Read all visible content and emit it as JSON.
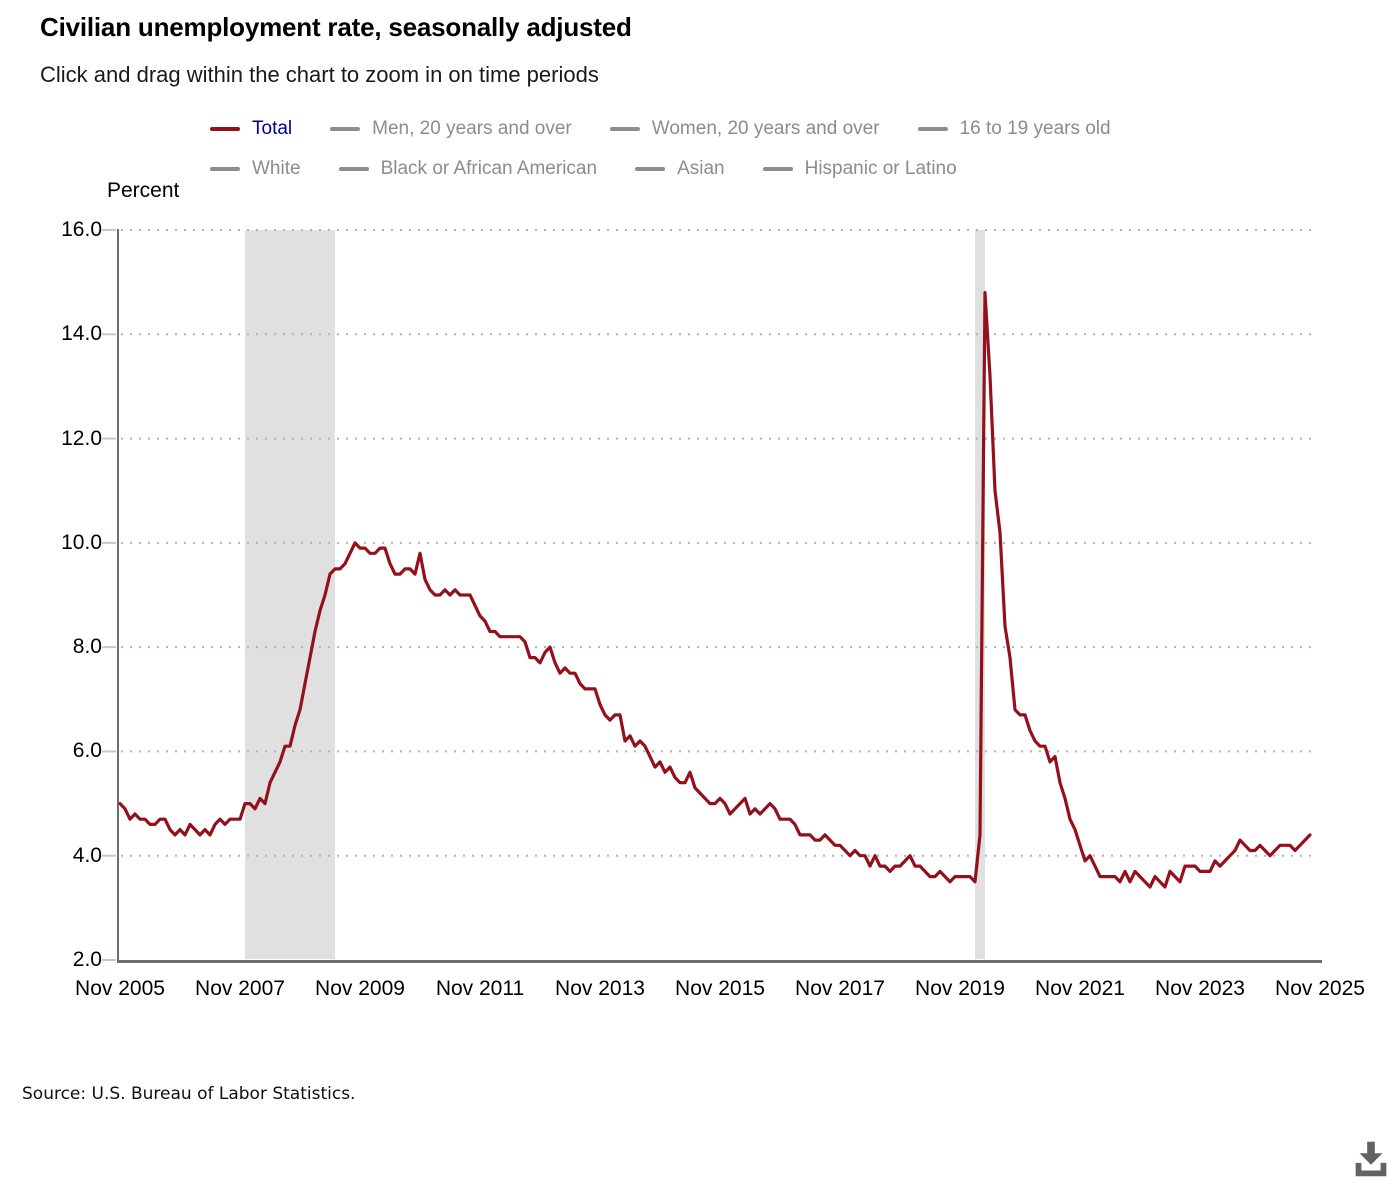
{
  "page": {
    "title": "Civilian unemployment rate, seasonally adjusted",
    "subtitle": "Click and drag within the chart to zoom in on time periods",
    "y_axis_title": "Percent",
    "source": "Source: U.S. Bureau of Labor Statistics."
  },
  "colors": {
    "active_series": "#94101a",
    "legend_active_text": "#00008b",
    "legend_inactive": "#8c8c8c",
    "recession_band": "#e0e0e0",
    "gridline": "#b3b3b3",
    "axis": "#6d6d6d",
    "y_tick": "#bcc7e1",
    "download_icon": "#636363"
  },
  "legend": {
    "items": [
      {
        "label": "Total",
        "active": true
      },
      {
        "label": "Men, 20 years and over",
        "active": false
      },
      {
        "label": "Women, 20 years and over",
        "active": false
      },
      {
        "label": "16 to 19 years old",
        "active": false
      },
      {
        "label": "White",
        "active": false
      },
      {
        "label": "Black or African American",
        "active": false
      },
      {
        "label": "Asian",
        "active": false
      },
      {
        "label": "Hispanic or Latino",
        "active": false
      }
    ]
  },
  "chart_data": {
    "type": "line",
    "title": "Civilian unemployment rate, seasonally adjusted",
    "xlabel": "",
    "ylabel": "Percent",
    "ylim": [
      2.0,
      16.0
    ],
    "grid": "dotted-horizontal",
    "legend_position": "top",
    "frequency": "monthly",
    "x_start": "Nov 2005",
    "x_end": "Nov 2025",
    "y_tick_values": [
      16,
      14,
      12,
      10,
      8,
      6,
      4,
      2
    ],
    "y_tick_labels": [
      "16.0",
      "14.0",
      "12.0",
      "10.0",
      "8.0",
      "6.0",
      "4.0",
      "2.0"
    ],
    "x_tick_labels": [
      "Nov 2005",
      "Nov 2007",
      "Nov 2009",
      "Nov 2011",
      "Nov 2013",
      "Nov 2015",
      "Nov 2017",
      "Nov 2019",
      "Nov 2021",
      "Nov 2023",
      "Nov 2025"
    ],
    "x_tick_month_indexes": [
      0,
      24,
      48,
      72,
      96,
      120,
      144,
      168,
      192,
      216,
      240
    ],
    "recession_bands": [
      {
        "start": "Dec 2007",
        "end": "Jun 2009",
        "start_month_index": 25,
        "end_month_index": 43
      },
      {
        "start": "Feb 2020",
        "end": "Apr 2020",
        "start_month_index": 171,
        "end_month_index": 173
      }
    ],
    "series": [
      {
        "name": "Total",
        "start": "Nov 2005",
        "end": "Sep 2025",
        "values": [
          5.0,
          4.9,
          4.7,
          4.8,
          4.7,
          4.7,
          4.6,
          4.6,
          4.7,
          4.7,
          4.5,
          4.4,
          4.5,
          4.4,
          4.6,
          4.5,
          4.4,
          4.5,
          4.4,
          4.6,
          4.7,
          4.6,
          4.7,
          4.7,
          4.7,
          5.0,
          5.0,
          4.9,
          5.1,
          5.0,
          5.4,
          5.6,
          5.8,
          6.1,
          6.1,
          6.5,
          6.8,
          7.3,
          7.8,
          8.3,
          8.7,
          9.0,
          9.4,
          9.5,
          9.5,
          9.6,
          9.8,
          10.0,
          9.9,
          9.9,
          9.8,
          9.8,
          9.9,
          9.9,
          9.6,
          9.4,
          9.4,
          9.5,
          9.5,
          9.4,
          9.8,
          9.3,
          9.1,
          9.0,
          9.0,
          9.1,
          9.0,
          9.1,
          9.0,
          9.0,
          9.0,
          8.8,
          8.6,
          8.5,
          8.3,
          8.3,
          8.2,
          8.2,
          8.2,
          8.2,
          8.2,
          8.1,
          7.8,
          7.8,
          7.7,
          7.9,
          8.0,
          7.7,
          7.5,
          7.6,
          7.5,
          7.5,
          7.3,
          7.2,
          7.2,
          7.2,
          6.9,
          6.7,
          6.6,
          6.7,
          6.7,
          6.2,
          6.3,
          6.1,
          6.2,
          6.1,
          5.9,
          5.7,
          5.8,
          5.6,
          5.7,
          5.5,
          5.4,
          5.4,
          5.6,
          5.3,
          5.2,
          5.1,
          5.0,
          5.0,
          5.1,
          5.0,
          4.8,
          4.9,
          5.0,
          5.1,
          4.8,
          4.9,
          4.8,
          4.9,
          5.0,
          4.9,
          4.7,
          4.7,
          4.7,
          4.6,
          4.4,
          4.4,
          4.4,
          4.3,
          4.3,
          4.4,
          4.3,
          4.2,
          4.2,
          4.1,
          4.0,
          4.1,
          4.0,
          4.0,
          3.8,
          4.0,
          3.8,
          3.8,
          3.7,
          3.8,
          3.8,
          3.9,
          4.0,
          3.8,
          3.8,
          3.7,
          3.6,
          3.6,
          3.7,
          3.6,
          3.5,
          3.6,
          3.6,
          3.6,
          3.6,
          3.5,
          4.4,
          14.8,
          13.2,
          11.0,
          10.2,
          8.4,
          7.8,
          6.8,
          6.7,
          6.7,
          6.4,
          6.2,
          6.1,
          6.1,
          5.8,
          5.9,
          5.4,
          5.1,
          4.7,
          4.5,
          4.2,
          3.9,
          4.0,
          3.8,
          3.6,
          3.6,
          3.6,
          3.6,
          3.5,
          3.7,
          3.5,
          3.7,
          3.6,
          3.5,
          3.4,
          3.6,
          3.5,
          3.4,
          3.7,
          3.6,
          3.5,
          3.8,
          3.8,
          3.8,
          3.7,
          3.7,
          3.7,
          3.9,
          3.8,
          3.9,
          4.0,
          4.1,
          4.3,
          4.2,
          4.1,
          4.1,
          4.2,
          4.1,
          4.0,
          4.1,
          4.2,
          4.2,
          4.2,
          4.1,
          4.2,
          4.3,
          4.4
        ]
      }
    ],
    "inactive_series": [
      "Men, 20 years and over",
      "Women, 20 years and over",
      "16 to 19 years old",
      "White",
      "Black or African American",
      "Asian",
      "Hispanic or Latino"
    ]
  }
}
